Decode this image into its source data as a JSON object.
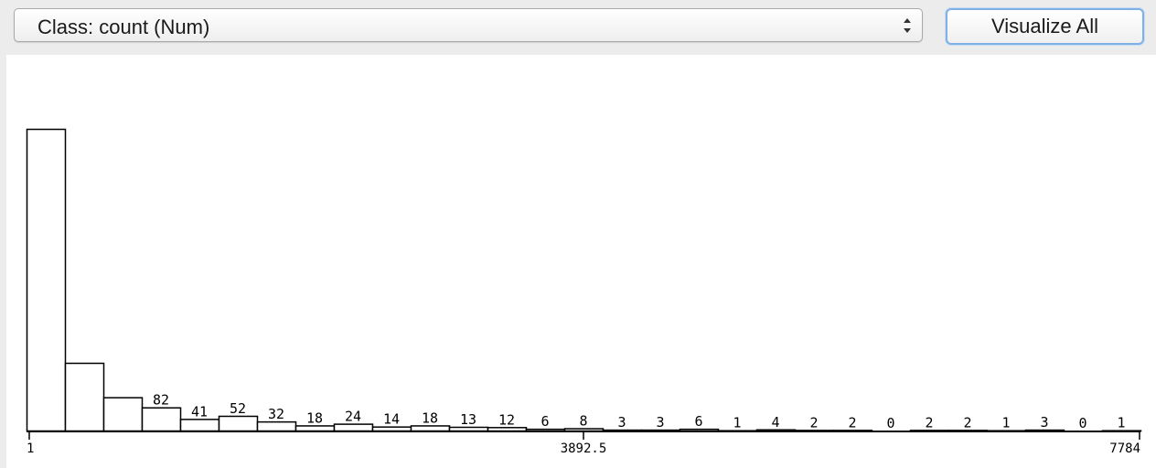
{
  "toolbar": {
    "class_select_value": "Class: count (Num)",
    "visualize_all_label": "Visualize All"
  },
  "chart_data": {
    "type": "bar",
    "title": "",
    "xlabel": "",
    "ylabel": "",
    "x_min": 1,
    "x_max": 7784,
    "tick_labels": [
      "1",
      "3892.5",
      "7784"
    ],
    "bins": 29,
    "values": [
      1070,
      240,
      118,
      82,
      41,
      52,
      32,
      18,
      24,
      14,
      18,
      13,
      12,
      6,
      8,
      3,
      3,
      6,
      1,
      4,
      2,
      2,
      0,
      2,
      2,
      1,
      3,
      0,
      1
    ],
    "count_labels": [
      "",
      "",
      "",
      "82",
      "41",
      "52",
      "32",
      "18",
      "24",
      "14",
      "18",
      "13",
      "12",
      "6",
      "8",
      "3",
      "3",
      "6",
      "1",
      "4",
      "2",
      "2",
      "0",
      "2",
      "2",
      "1",
      "3",
      "0",
      "1"
    ],
    "ylim": [
      0,
      1070
    ],
    "grid": false,
    "legend": "none"
  }
}
